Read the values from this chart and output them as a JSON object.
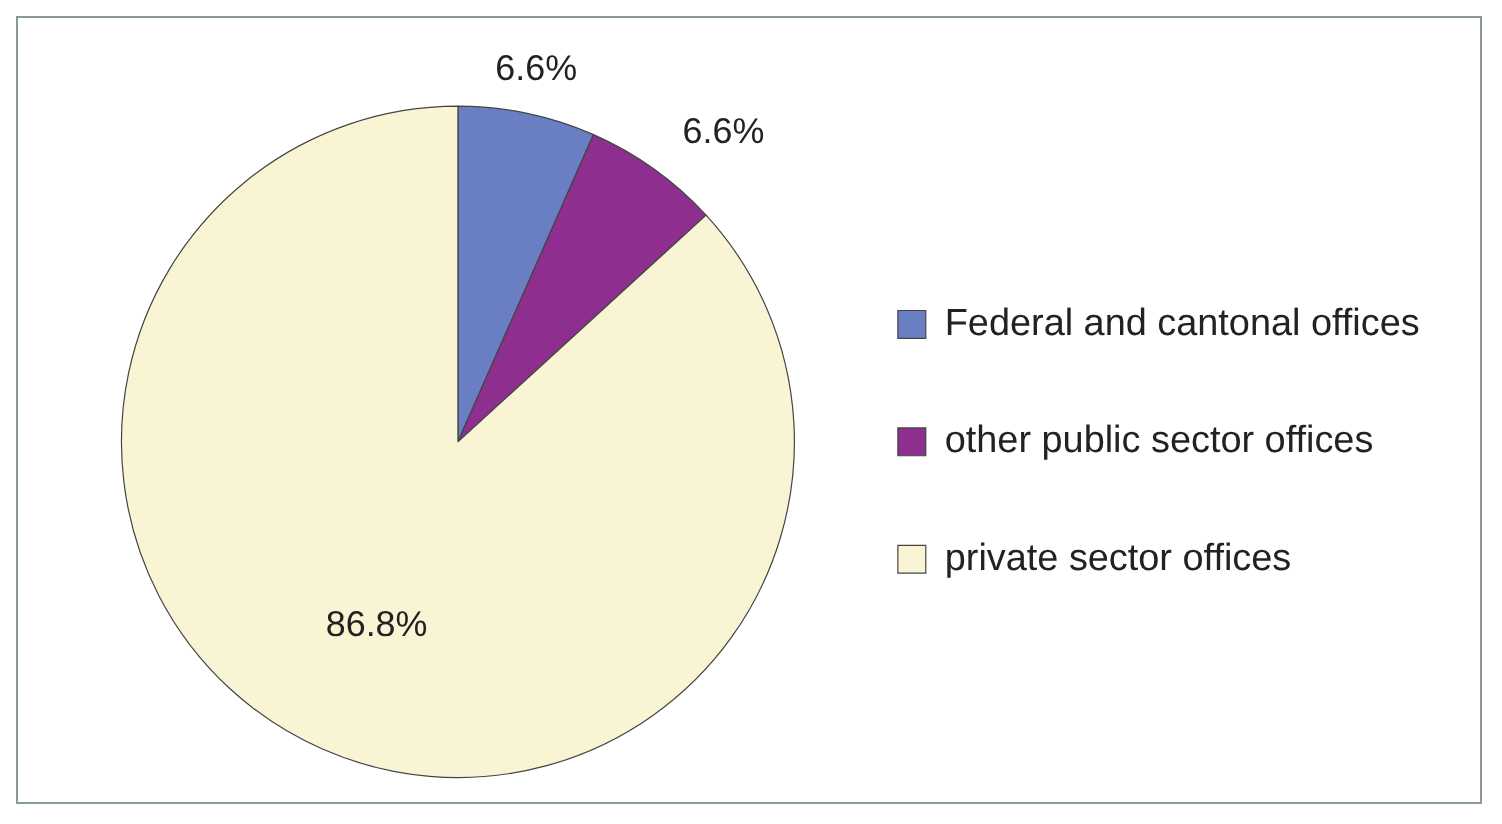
{
  "chart_data": {
    "type": "pie",
    "categories": [
      "Federal and cantonal offices",
      "other public sector offices",
      "private sector offices"
    ],
    "values": [
      6.6,
      6.6,
      86.8
    ],
    "colors": [
      "#6a7ec4",
      "#8e2f90",
      "#f9f4d3"
    ],
    "value_labels": [
      "6.6%",
      "6.6%",
      "86.8%"
    ],
    "legend": "right"
  }
}
